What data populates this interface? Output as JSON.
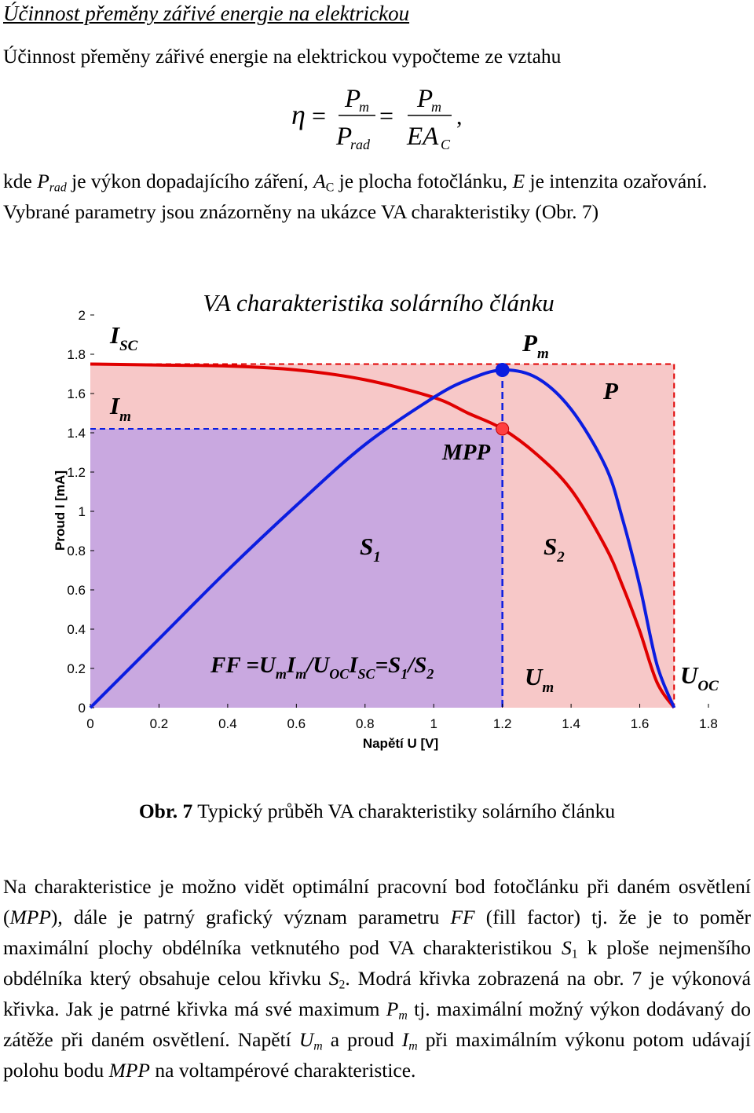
{
  "heading": "Účinnost přeměny zářivé energie na elektrickou",
  "intro": "Účinnost přeměny zářivé energie na elektrickou vypočteme ze vztahu",
  "formula": {
    "eta": "η",
    "eq": "=",
    "num": "P",
    "num_sub": "m",
    "den1": "P",
    "den1_sub": "rad",
    "den2": "EA",
    "den2_sub": "C",
    "tail": ","
  },
  "para2": {
    "t1": "kde ",
    "P": "P",
    "P_sub": "rad",
    "t2": " je výkon dopadajícího záření, ",
    "A": "A",
    "A_sub": "C",
    "t3": " je plocha fotočlánku, ",
    "E": "E",
    "t4": " je intenzita ozařování. Vybrané parametry jsou znázorněny na ukázce VA charakteristiky (Obr. 7)"
  },
  "chart_data": {
    "type": "line",
    "title": "VA charakteristika solárního článku",
    "xlabel": "Napětí U [V]",
    "ylabel": "Proud I [mA]",
    "xlim": [
      0,
      1.8
    ],
    "ylim": [
      0,
      2
    ],
    "xticks": [
      "0",
      "0.2",
      "0.4",
      "0.6",
      "0.8",
      "1",
      "1.2",
      "1.4",
      "1.6",
      "1.8"
    ],
    "yticks": [
      "0",
      "0.2",
      "0.4",
      "0.6",
      "0.8",
      "1",
      "1.2",
      "1.4",
      "1.6",
      "1.8",
      "2"
    ],
    "colors": {
      "iv": "#e00000",
      "power": "#0b1de0",
      "s2": "#f7c8c8",
      "s1": "#c9a8e0",
      "mpp": "#ff4040",
      "pm": "#0b1de0"
    },
    "series": [
      {
        "name": "I",
        "x": [
          0,
          0.2,
          0.4,
          0.6,
          0.8,
          1.0,
          1.1,
          1.2,
          1.3,
          1.4,
          1.5,
          1.55,
          1.6,
          1.65,
          1.7
        ],
        "y": [
          1.75,
          1.745,
          1.74,
          1.72,
          1.67,
          1.58,
          1.5,
          1.42,
          1.29,
          1.11,
          0.82,
          0.62,
          0.39,
          0.13,
          0
        ]
      },
      {
        "name": "P",
        "x": [
          0,
          0.2,
          0.4,
          0.6,
          0.8,
          1.0,
          1.1,
          1.2,
          1.3,
          1.4,
          1.5,
          1.55,
          1.6,
          1.65,
          1.7
        ],
        "y": [
          0,
          0.35,
          0.7,
          1.03,
          1.34,
          1.58,
          1.67,
          1.72,
          1.68,
          1.52,
          1.23,
          0.96,
          0.62,
          0.22,
          0
        ]
      }
    ],
    "points": {
      "mpp": {
        "x": 1.2,
        "y": 1.42
      },
      "pm": {
        "x": 1.2,
        "y": 1.72
      }
    },
    "labels": {
      "isc": "I",
      "isc_sub": "SC",
      "im": "I",
      "im_sub": "m",
      "pm": "P",
      "pm_sub": "m",
      "p": "P",
      "mpp": "MPP",
      "s1": "S",
      "s1_sub": "1",
      "s2": "S",
      "s2_sub": "2",
      "um": "U",
      "um_sub": "m",
      "uoc": "U",
      "uoc_sub": "OC",
      "ff": [
        "FF =U",
        "m",
        "I",
        "m",
        "/U",
        "OC",
        "I",
        "SC",
        "=S",
        "1",
        "/S",
        "2"
      ]
    }
  },
  "caption": {
    "bold": "Obr. 7",
    "text": " Typický průběh VA charakteristiky solárního článku"
  },
  "para3": {
    "t1": "Na charakteristice je možno vidět optimální pracovní bod fotočlánku při daném osvětlení (",
    "mpp": "MPP",
    "t2": "), dále je patrný grafický význam parametru ",
    "ff": "FF",
    "t3": " (fill factor) tj. že je to poměr maximální plochy obdélníka vetknutého pod VA charakteristikou ",
    "s1": "S",
    "s1_sub": "1",
    "t4": " k ploše nejmenšího obdélníka který obsahuje celou křivku ",
    "s2": "S",
    "s2_sub": "2",
    "t5": ". Modrá křivka zobrazená na obr. 7 je výkonová křivka. Jak je patrné křivka má své maximum ",
    "pm": "P",
    "pm_sub": "m",
    "t6": " tj. maximální možný výkon dodávaný do zátěže při daném osvětlení. Napětí ",
    "um": "U",
    "um_sub": "m",
    "t7": " a proud ",
    "im": "I",
    "im_sub": "m",
    "t8": " při maximálním výkonu potom udávají polohu bodu ",
    "mpp2": "MPP",
    "t9": " na voltampérové charakteristice."
  }
}
